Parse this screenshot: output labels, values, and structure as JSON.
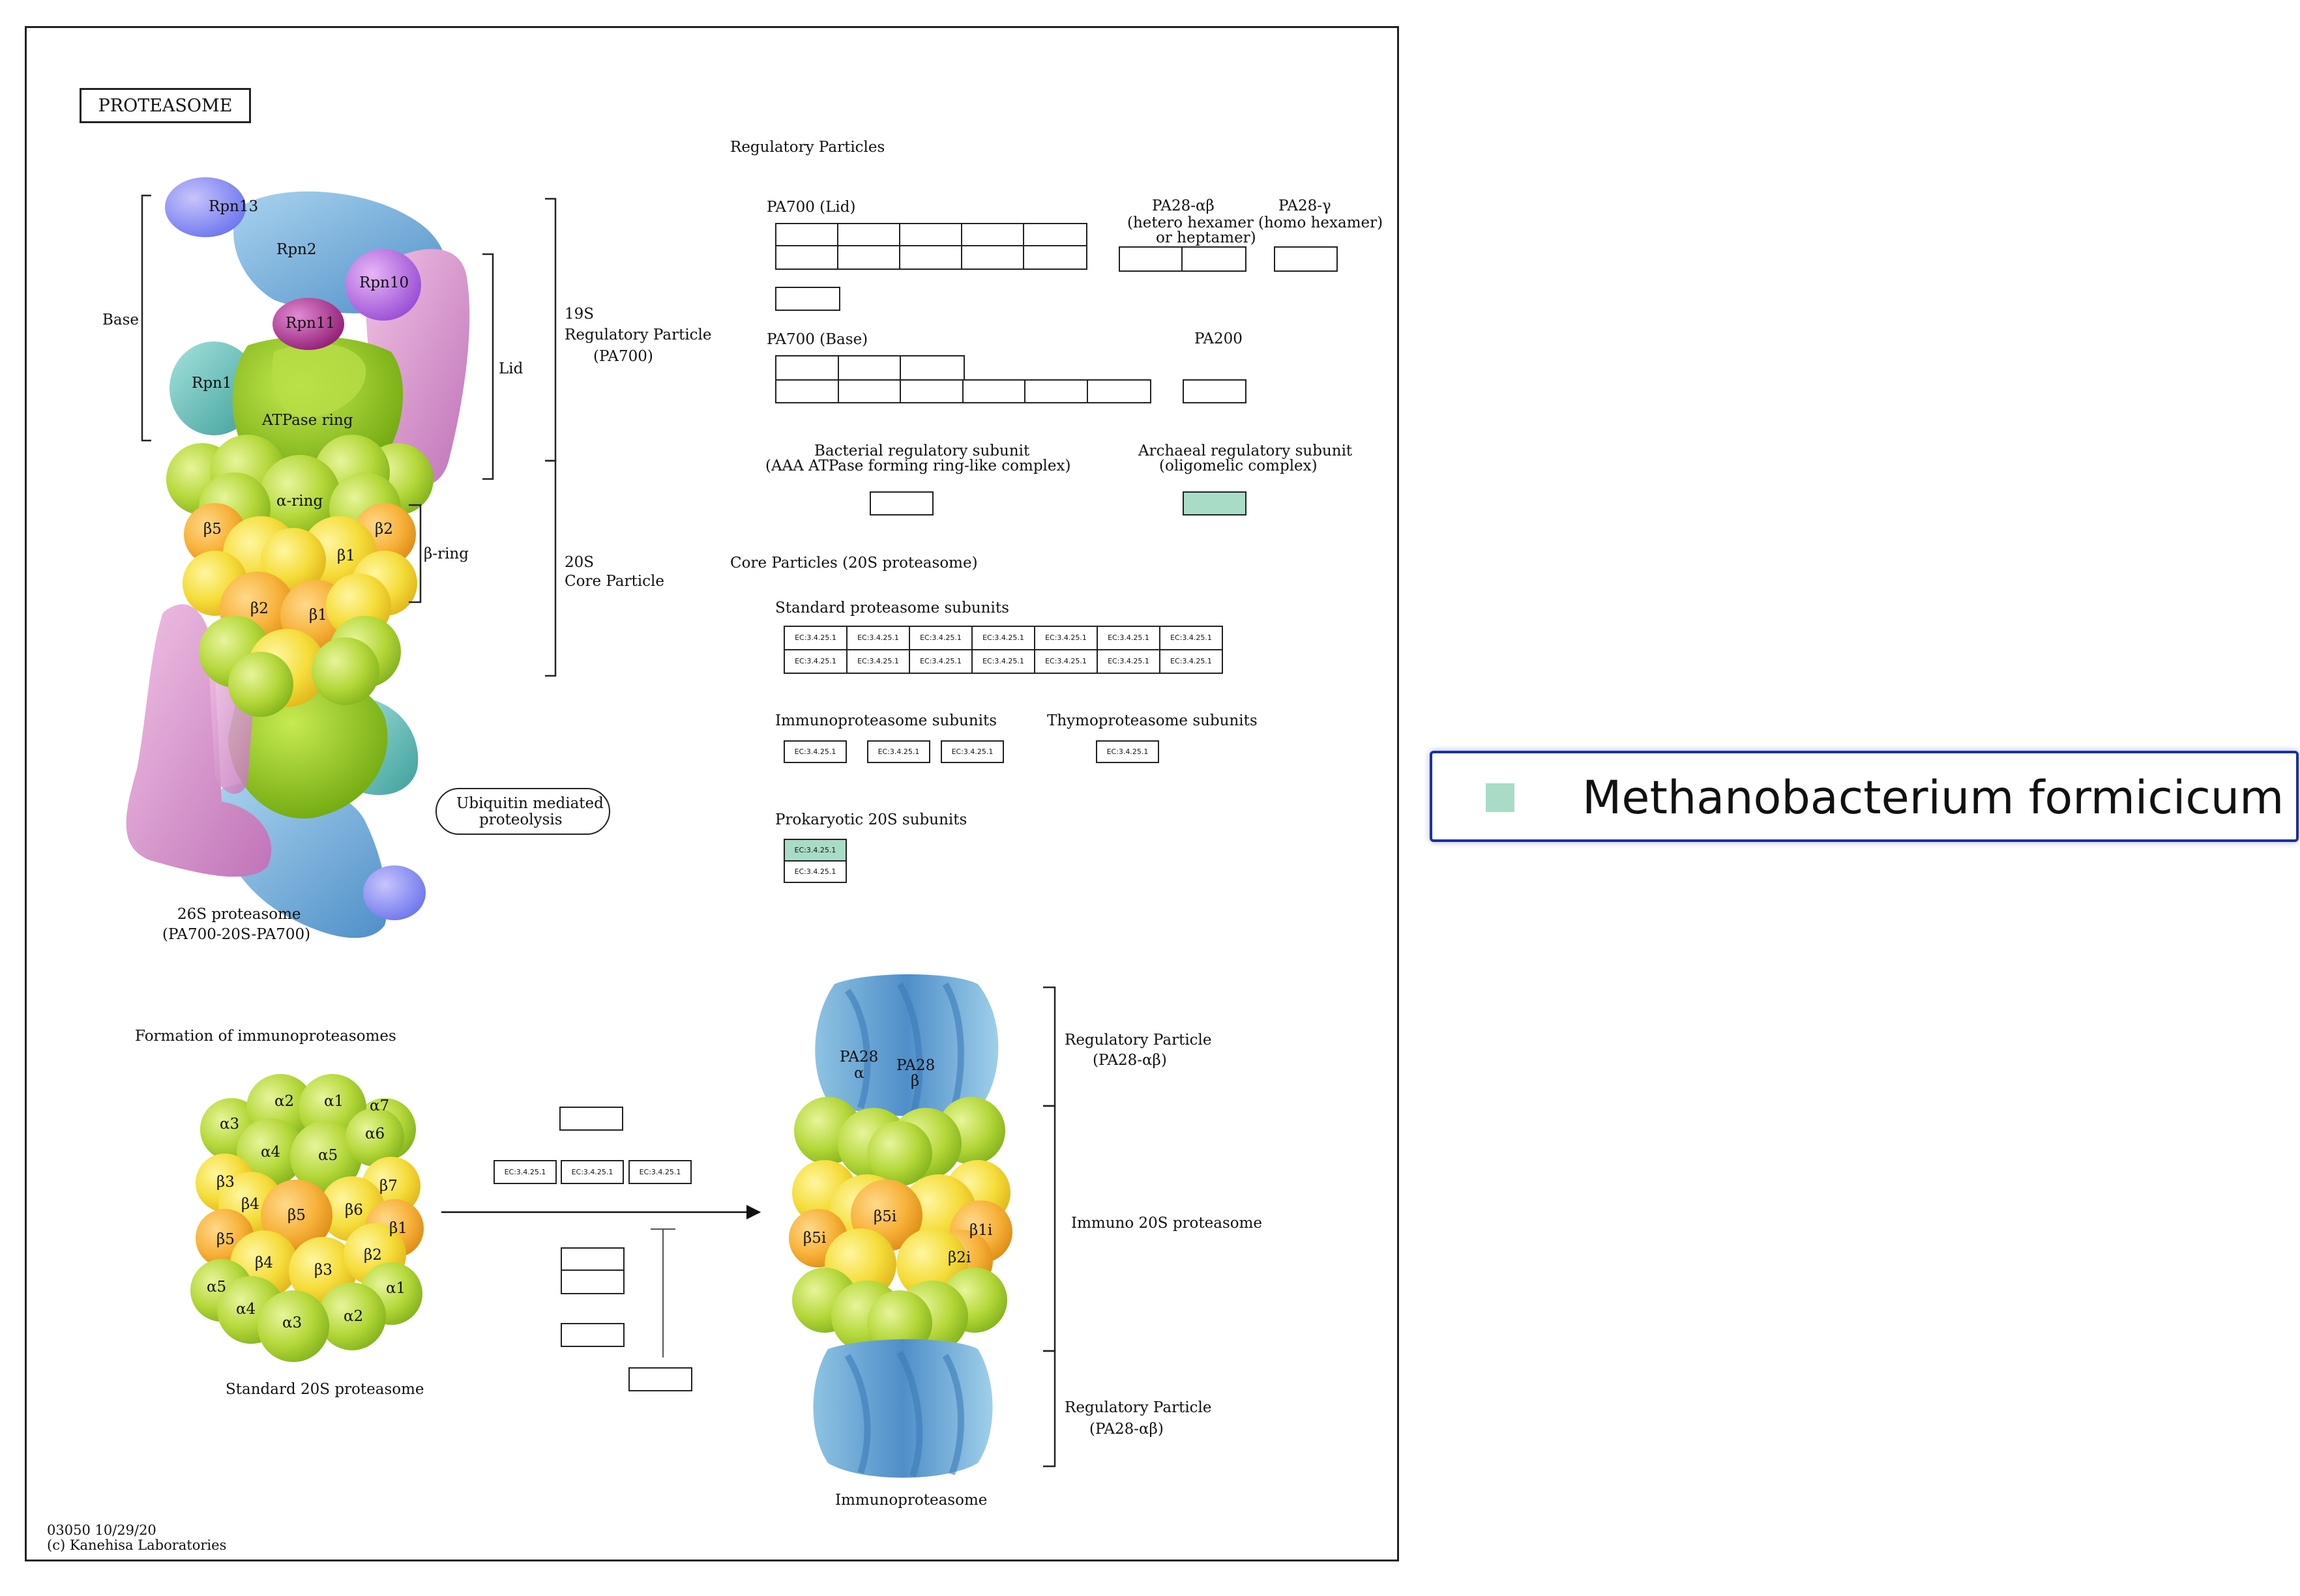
{
  "map": {
    "title": "PROTEASOME",
    "footer_id": "03050 10/29/20",
    "footer_copyright": "(c) Kanehisa Laboratories",
    "highlight_color": "#a9dcc6"
  },
  "structure_labels": {
    "base": "Base",
    "lid": "Lid",
    "rpn13": "Rpn13",
    "rpn2": "Rpn2",
    "rpn10": "Rpn10",
    "rpn11": "Rpn11",
    "rpn1": "Rpn1",
    "atpase_ring": "ATPase ring",
    "alpha_ring": "α-ring",
    "beta_ring": "β-ring",
    "b5": "β5",
    "b2_top": "β2",
    "b1_top": "β1",
    "b2": "β2",
    "b1": "β1",
    "rp19s_line1": "19S",
    "rp19s_line2": "Regulatory Particle",
    "rp19s_line3": "(PA700)",
    "cp20s_line1": "20S",
    "cp20s_line2": "Core Particle",
    "p26s_line1": "26S proteasome",
    "p26s_line2": "(PA700-20S-PA700)",
    "ubiquitin_line1": "Ubiquitin mediated",
    "ubiquitin_line2": "proteolysis"
  },
  "regulatory": {
    "heading": "Regulatory Particles",
    "pa700_lid": "PA700 (Lid)",
    "pa28ab_line1": "PA28-αβ",
    "pa28ab_line2": "(hetero hexamer",
    "pa28ab_line3": "or heptamer)",
    "pa28g_line1": "PA28-γ",
    "pa28g_line2": "(homo hexamer)",
    "pa700_base": "PA700 (Base)",
    "pa200": "PA200",
    "bacterial_line1": "Bacterial regulatory subunit",
    "bacterial_line2": "(AAA ATPase forming ring-like complex)",
    "archaeal_line1": "Archaeal regulatory subunit",
    "archaeal_line2": "(oligomelic complex)"
  },
  "core": {
    "heading": "Core Particles (20S proteasome)",
    "standard": "Standard proteasome subunits",
    "immuno": "Immunoproteasome subunits",
    "thymo": "Thymoproteasome subunits",
    "prokaryotic": "Prokaryotic 20S subunits",
    "ec_label": "EC:3.4.25.1"
  },
  "immuno_formation": {
    "heading": "Formation of immunoproteasomes",
    "standard_caption": "Standard 20S proteasome",
    "immuno_caption": "Immunoproteasome",
    "rp_top_line1": "Regulatory Particle",
    "rp_top_line2": "(PA28-αβ)",
    "immuno20s": "Immuno 20S proteasome",
    "rp_bot_line1": "Regulatory Particle",
    "rp_bot_line2": "(PA28-αβ)",
    "pa28a_line1": "PA28",
    "pa28a_line2": "α",
    "pa28b_line1": "PA28",
    "pa28b_line2": "β",
    "a1": "α1",
    "a2": "α2",
    "a3": "α3",
    "a4": "α4",
    "a5": "α5",
    "a6": "α6",
    "a7": "α7",
    "b1": "β1",
    "b2": "β2",
    "b3": "β3",
    "b4": "β4",
    "b5": "β5",
    "b6": "β6",
    "b7": "β7",
    "b5i": "β5i",
    "b1i": "β1i",
    "b2i": "β2i"
  },
  "legend": {
    "label": "Methanobacterium formicicum",
    "swatch_color": "#a9dcc6"
  }
}
